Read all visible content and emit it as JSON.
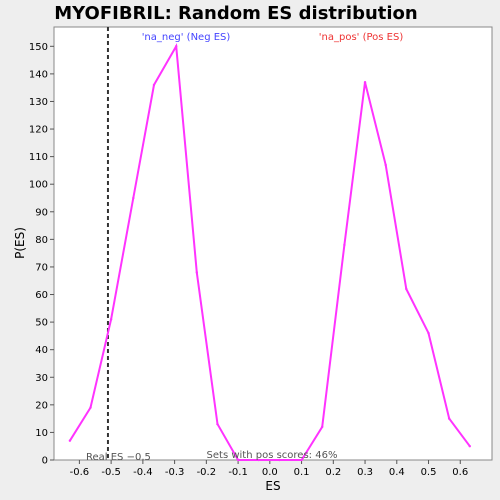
{
  "chart_data": {
    "type": "line",
    "title": "MYOFIBRIL: Random ES distribution",
    "xlabel": "ES",
    "ylabel": "P(ES)",
    "xlim": [
      -0.68,
      0.7
    ],
    "ylim": [
      0,
      157
    ],
    "xticks": [
      -0.6,
      -0.5,
      -0.4,
      -0.3,
      -0.2,
      -0.1,
      0.0,
      0.1,
      0.2,
      0.3,
      0.4,
      0.5,
      0.6
    ],
    "xtick_labels": [
      "-0.6",
      "-0.5",
      "-0.4",
      "-0.3",
      "-0.2",
      "-0.1",
      "0.0",
      "0.1",
      "0.2",
      "0.3",
      "0.4",
      "0.5",
      "0.6"
    ],
    "yticks": [
      0,
      10,
      20,
      30,
      40,
      50,
      60,
      70,
      80,
      90,
      100,
      110,
      120,
      130,
      140,
      150
    ],
    "ytick_labels": [
      "0",
      "10",
      "20",
      "30",
      "40",
      "50",
      "60",
      "70",
      "80",
      "90",
      "100",
      "110",
      "120",
      "130",
      "140",
      "150"
    ],
    "grid": false,
    "series": [
      {
        "color": "#ff33ff",
        "x": [
          -0.63,
          -0.565,
          -0.5,
          -0.43,
          -0.365,
          -0.295,
          -0.23,
          -0.165,
          -0.1,
          -0.035,
          0.03,
          0.1,
          0.165,
          0.235,
          0.3,
          0.365,
          0.43,
          0.5,
          0.565,
          0.63
        ],
        "y": [
          7,
          19,
          51,
          95,
          136,
          150,
          68,
          13,
          0,
          0,
          0,
          0,
          12,
          78,
          137,
          107,
          62,
          46,
          15,
          5
        ]
      }
    ],
    "reference_line": {
      "x": -0.51,
      "style": "dashed",
      "color": "#333333"
    },
    "annotations": {
      "neg_label": "'na_neg' (Neg ES)",
      "neg_color": "#4444ff",
      "pos_label": "'na_pos' (Pos ES)",
      "pos_color": "#ee3333",
      "real_es": "Real ES −0.5",
      "pos_scores": "Sets with pos scores: 46%"
    }
  }
}
